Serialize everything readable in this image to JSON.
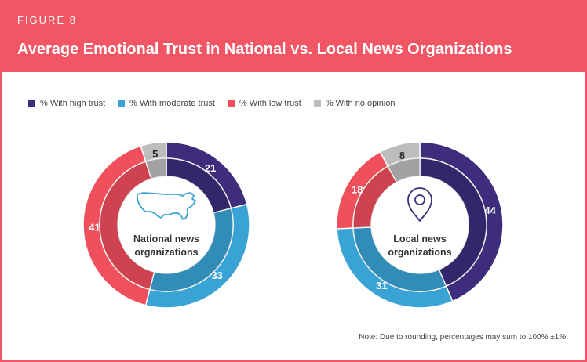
{
  "header": {
    "figure_label": "FIGURE 8",
    "title": "Average Emotional Trust in National vs. Local News Organizations"
  },
  "colors": {
    "header_bg": "#f25563",
    "high": "#3d2d7c",
    "moderate": "#3aa3d6",
    "low": "#f04f5c",
    "no_opinion": "#bdbdbd"
  },
  "legend": [
    {
      "label": "% With high trust",
      "color": "#3d2d7c"
    },
    {
      "label": "% With moderate trust",
      "color": "#3aa3d6"
    },
    {
      "label": "% With low trust",
      "color": "#f04f5c"
    },
    {
      "label": "% With no opinion",
      "color": "#bdbdbd"
    }
  ],
  "chart_data": [
    {
      "type": "pie",
      "variant": "donut",
      "center_label": [
        "National news",
        "organizations"
      ],
      "center_icon": "us-map-icon",
      "categories": [
        "% With high trust",
        "% With moderate trust",
        "% With low trust",
        "% With no opinion"
      ],
      "values": [
        21,
        33,
        41,
        5
      ]
    },
    {
      "type": "pie",
      "variant": "donut",
      "center_label": [
        "Local news",
        "organizations"
      ],
      "center_icon": "location-pin-icon",
      "categories": [
        "% With high trust",
        "% With moderate trust",
        "% With low trust",
        "% With no opinion"
      ],
      "values": [
        44,
        31,
        18,
        8
      ]
    }
  ],
  "note": "Note: Due to rounding, percentages may sum to 100% ±1%."
}
